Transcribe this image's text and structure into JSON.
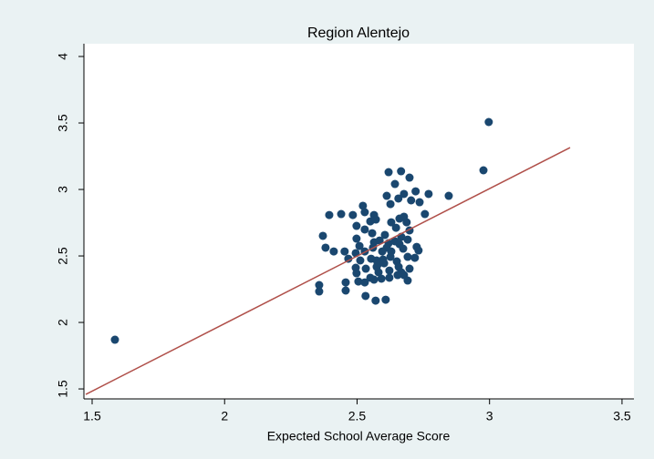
{
  "chart_data": {
    "type": "scatter",
    "title": "Region Alentejo",
    "x_label": "Expected School Average Score",
    "x": [
      1.586,
      2.977,
      2.997,
      2.846,
      2.619,
      2.666,
      2.698,
      2.643,
      2.677,
      2.721,
      2.77,
      2.612,
      2.656,
      2.704,
      2.736,
      2.756,
      2.626,
      2.522,
      2.529,
      2.484,
      2.44,
      2.564,
      2.55,
      2.571,
      2.498,
      2.529,
      2.629,
      2.66,
      2.677,
      2.687,
      2.647,
      2.698,
      2.667,
      2.605,
      2.557,
      2.371,
      2.498,
      2.564,
      2.585,
      2.619,
      2.643,
      2.691,
      2.612,
      2.66,
      2.674,
      2.725,
      2.732,
      2.691,
      2.718,
      2.509,
      2.529,
      2.381,
      2.412,
      2.453,
      2.495,
      2.467,
      2.512,
      2.553,
      2.574,
      2.598,
      2.626,
      2.65,
      2.577,
      2.602,
      2.657,
      2.698,
      2.622,
      2.667,
      2.677,
      2.653,
      2.495,
      2.498,
      2.533,
      2.581,
      2.564,
      2.55,
      2.592,
      2.622,
      2.505,
      2.529,
      2.457,
      2.357,
      2.457,
      2.357,
      2.532,
      2.57,
      2.608,
      2.395,
      2.56,
      2.595,
      2.691,
      2.629,
      2.574
    ],
    "values": [
      1.87,
      3.144,
      3.507,
      2.952,
      3.13,
      3.137,
      3.089,
      3.041,
      2.966,
      2.986,
      2.966,
      2.952,
      2.932,
      2.918,
      2.904,
      2.815,
      2.89,
      2.877,
      2.829,
      2.808,
      2.815,
      2.808,
      2.76,
      2.774,
      2.726,
      2.699,
      2.753,
      2.781,
      2.795,
      2.753,
      2.712,
      2.692,
      2.644,
      2.658,
      2.671,
      2.651,
      2.63,
      2.603,
      2.616,
      2.596,
      2.61,
      2.623,
      2.562,
      2.589,
      2.555,
      2.568,
      2.541,
      2.493,
      2.486,
      2.575,
      2.534,
      2.562,
      2.534,
      2.534,
      2.521,
      2.479,
      2.466,
      2.479,
      2.466,
      2.473,
      2.493,
      2.459,
      2.432,
      2.445,
      2.418,
      2.404,
      2.39,
      2.377,
      2.356,
      2.356,
      2.411,
      2.37,
      2.404,
      2.377,
      2.322,
      2.336,
      2.329,
      2.336,
      2.308,
      2.301,
      2.301,
      2.281,
      2.24,
      2.233,
      2.199,
      2.164,
      2.171,
      2.808,
      2.562,
      2.534,
      2.315,
      2.534,
      2.418
    ],
    "color": "#1a476f",
    "fit": {
      "x": [
        1.476,
        3.304
      ],
      "y": [
        1.459,
        3.315
      ],
      "color": "#b0504a"
    },
    "xlim": [
      1.469,
      3.545
    ],
    "ylim": [
      1.425,
      4.096
    ],
    "xticks": [
      1.5,
      2,
      2.5,
      3,
      3.5
    ],
    "yticks": [
      1.5,
      2,
      2.5,
      3,
      3.5,
      4
    ],
    "grid": false
  }
}
